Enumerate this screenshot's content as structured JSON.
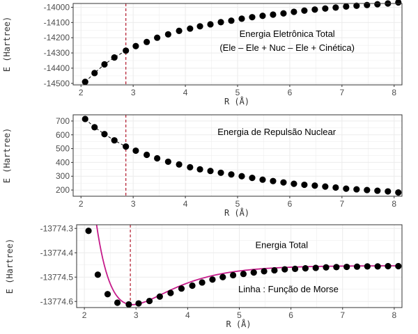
{
  "colors": {
    "point": "#000000",
    "vline": "#b2182b",
    "fit": "#c51b8a",
    "grid": "#ebebeb",
    "panel_border": "#333333"
  },
  "chart_data": [
    {
      "type": "scatter",
      "title": "",
      "xlabel": "R (Å)",
      "ylabel": "E (Hartree)",
      "xlim": [
        1.85,
        8.15
      ],
      "ylim": [
        -14510,
        -13975
      ],
      "x_ticks": [
        2,
        3,
        4,
        5,
        6,
        7,
        8
      ],
      "y_ticks": [
        -14500,
        -14400,
        -14300,
        -14200,
        -14100,
        -14000
      ],
      "x_tick_labels": [
        "2",
        "3",
        "4",
        "5",
        "6",
        "7",
        "8"
      ],
      "y_tick_labels": [
        "-14500",
        "-14400",
        "-14300",
        "-14200",
        "-14100",
        "-14000"
      ],
      "grid": true,
      "vline_x": 2.86,
      "connect_first_points": 5,
      "annotations": [
        {
          "text": "Energia  Eletrônica  Total",
          "x": 5.95,
          "y": -14195,
          "anchor": "middle",
          "color": "#000000"
        },
        {
          "text": "(Ele – Ele  +  Nuc – Ele  +  Cinética)",
          "x": 5.95,
          "y": -14285,
          "anchor": "middle",
          "color": "#000000"
        }
      ],
      "x": [
        2.08,
        2.26,
        2.45,
        2.64,
        2.86,
        3.05,
        3.26,
        3.46,
        3.67,
        3.88,
        4.09,
        4.28,
        4.48,
        4.68,
        4.88,
        5.08,
        5.28,
        5.48,
        5.68,
        5.88,
        6.08,
        6.28,
        6.48,
        6.68,
        6.88,
        7.08,
        7.28,
        7.48,
        7.68,
        7.88,
        8.08
      ],
      "y": [
        -14490,
        -14432,
        -14375,
        -14330,
        -14285,
        -14255,
        -14228,
        -14200,
        -14178,
        -14155,
        -14140,
        -14125,
        -14112,
        -14098,
        -14088,
        -14075,
        -14065,
        -14056,
        -14048,
        -14040,
        -14030,
        -14022,
        -14015,
        -14008,
        -14002,
        -13995,
        -13990,
        -13985,
        -13980,
        -13975,
        -13968
      ]
    },
    {
      "type": "scatter",
      "title": "",
      "xlabel": "R (Å)",
      "ylabel": "E (Hartree)",
      "xlim": [
        1.85,
        8.15
      ],
      "ylim": [
        155,
        745
      ],
      "x_ticks": [
        2,
        3,
        4,
        5,
        6,
        7,
        8
      ],
      "y_ticks": [
        200,
        300,
        400,
        500,
        600,
        700
      ],
      "x_tick_labels": [
        "2",
        "3",
        "4",
        "5",
        "6",
        "7",
        "8"
      ],
      "y_tick_labels": [
        "200",
        "300",
        "400",
        "500",
        "600",
        "700"
      ],
      "grid": true,
      "vline_x": 2.86,
      "connect_first_points": 5,
      "annotations": [
        {
          "text": "Energia  de  Repulsão  Nuclear",
          "x": 5.75,
          "y": 600,
          "anchor": "middle",
          "color": "#000000"
        }
      ],
      "x": [
        2.08,
        2.26,
        2.45,
        2.64,
        2.86,
        3.05,
        3.26,
        3.46,
        3.67,
        3.88,
        4.09,
        4.28,
        4.48,
        4.68,
        4.88,
        5.08,
        5.28,
        5.48,
        5.68,
        5.88,
        6.08,
        6.28,
        6.48,
        6.68,
        6.88,
        7.08,
        7.28,
        7.48,
        7.68,
        7.88,
        8.08
      ],
      "y": [
        715,
        655,
        605,
        560,
        515,
        485,
        455,
        430,
        405,
        385,
        365,
        350,
        338,
        325,
        313,
        300,
        288,
        275,
        265,
        255,
        245,
        238,
        232,
        225,
        218,
        210,
        205,
        200,
        195,
        190,
        182
      ]
    },
    {
      "type": "scatter",
      "title": "",
      "xlabel": "R (Å)",
      "ylabel": "E (Hartree)",
      "xlim": [
        1.85,
        8.15
      ],
      "ylim": [
        -13774.625,
        -13774.285
      ],
      "x_ticks": [
        2,
        3,
        4,
        5,
        6,
        7,
        8
      ],
      "y_ticks": [
        -13774.6,
        -13774.5,
        -13774.4,
        -13774.3
      ],
      "x_tick_labels": [
        "2",
        "3",
        "4",
        "5",
        "6",
        "7",
        "8"
      ],
      "y_tick_labels": [
        "-13774.6",
        "-13774.5",
        "-13774.4",
        "-13774.3"
      ],
      "grid": true,
      "vline_x": 2.89,
      "connect_first_points": 0,
      "annotations": [
        {
          "text": "Energia  Total",
          "x": 5.82,
          "y": -13774.38,
          "anchor": "middle",
          "color": "#000000"
        },
        {
          "text": "Linha :  Função  de  Morse",
          "x": 5.95,
          "y": -13774.562,
          "anchor": "middle",
          "color": "#c51b8a"
        }
      ],
      "fit": {
        "model": "Morse",
        "De": 0.16,
        "a": 1.28,
        "re": 2.93,
        "emin": -13774.613,
        "x_start": 1.99,
        "x_end": 8.08
      },
      "x": [
        2.08,
        2.26,
        2.45,
        2.64,
        2.86,
        3.05,
        3.26,
        3.46,
        3.67,
        3.88,
        4.09,
        4.28,
        4.48,
        4.68,
        4.88,
        5.08,
        5.28,
        5.48,
        5.68,
        5.88,
        6.08,
        6.28,
        6.48,
        6.68,
        6.88,
        7.08,
        7.28,
        7.48,
        7.68,
        7.88,
        8.08
      ],
      "y": [
        -13774.31,
        -13774.49,
        -13774.57,
        -13774.605,
        -13774.612,
        -13774.608,
        -13774.598,
        -13774.58,
        -13774.565,
        -13774.547,
        -13774.535,
        -13774.522,
        -13774.51,
        -13774.5,
        -13774.492,
        -13774.487,
        -13774.481,
        -13774.476,
        -13774.472,
        -13774.468,
        -13774.466,
        -13774.464,
        -13774.462,
        -13774.46,
        -13774.459,
        -13774.458,
        -13774.457,
        -13774.456,
        -13774.456,
        -13774.455,
        -13774.455
      ]
    }
  ]
}
